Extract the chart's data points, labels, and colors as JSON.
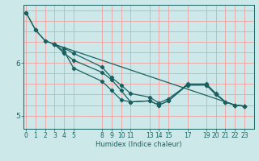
{
  "title": "",
  "xlabel": "Humidex (Indice chaleur)",
  "bg_color": "#cce8e8",
  "line_color": "#1a6060",
  "grid_color": "#f0a0a0",
  "axis_color": "#1a6060",
  "xticks": [
    0,
    1,
    2,
    3,
    4,
    5,
    8,
    9,
    10,
    11,
    13,
    14,
    15,
    17,
    19,
    20,
    21,
    22,
    23
  ],
  "yticks": [
    5,
    6
  ],
  "ylim": [
    4.75,
    7.1
  ],
  "xlim": [
    -0.3,
    24.0
  ],
  "hgrid_vals": [
    5.0,
    5.2,
    5.4,
    5.6,
    5.8,
    6.0,
    6.2,
    6.4,
    6.6,
    6.8,
    7.0
  ],
  "lines": [
    {
      "x": [
        0,
        1,
        2,
        3,
        4,
        5,
        8,
        9,
        10,
        11,
        13,
        14,
        15,
        17,
        19,
        20,
        21,
        22,
        23
      ],
      "y": [
        6.95,
        6.62,
        6.42,
        6.35,
        6.22,
        5.9,
        5.65,
        5.48,
        5.3,
        5.26,
        5.28,
        5.2,
        5.28,
        5.58,
        5.58,
        5.4,
        5.26,
        5.2,
        5.18
      ]
    },
    {
      "x": [
        0,
        1,
        2,
        3,
        4,
        5,
        8,
        9,
        10,
        11,
        13,
        14,
        15,
        17,
        19,
        20,
        21,
        22,
        23
      ],
      "y": [
        6.95,
        6.62,
        6.42,
        6.35,
        6.18,
        6.05,
        5.82,
        5.68,
        5.48,
        5.26,
        5.28,
        5.2,
        5.28,
        5.6,
        5.6,
        5.42,
        5.26,
        5.2,
        5.18
      ]
    },
    {
      "x": [
        3,
        4,
        5,
        8,
        9,
        10,
        11,
        13,
        14,
        15,
        17,
        19,
        20,
        21,
        22,
        23
      ],
      "y": [
        6.35,
        6.28,
        6.18,
        5.92,
        5.72,
        5.58,
        5.42,
        5.35,
        5.24,
        5.32,
        5.58,
        5.58,
        5.4,
        5.26,
        5.2,
        5.18
      ]
    },
    {
      "x": [
        3,
        22,
        23
      ],
      "y": [
        6.35,
        5.2,
        5.18
      ]
    }
  ],
  "xlabel_fontsize": 6.0,
  "tick_fontsize": 5.5,
  "ytick_fontsize": 6.5
}
